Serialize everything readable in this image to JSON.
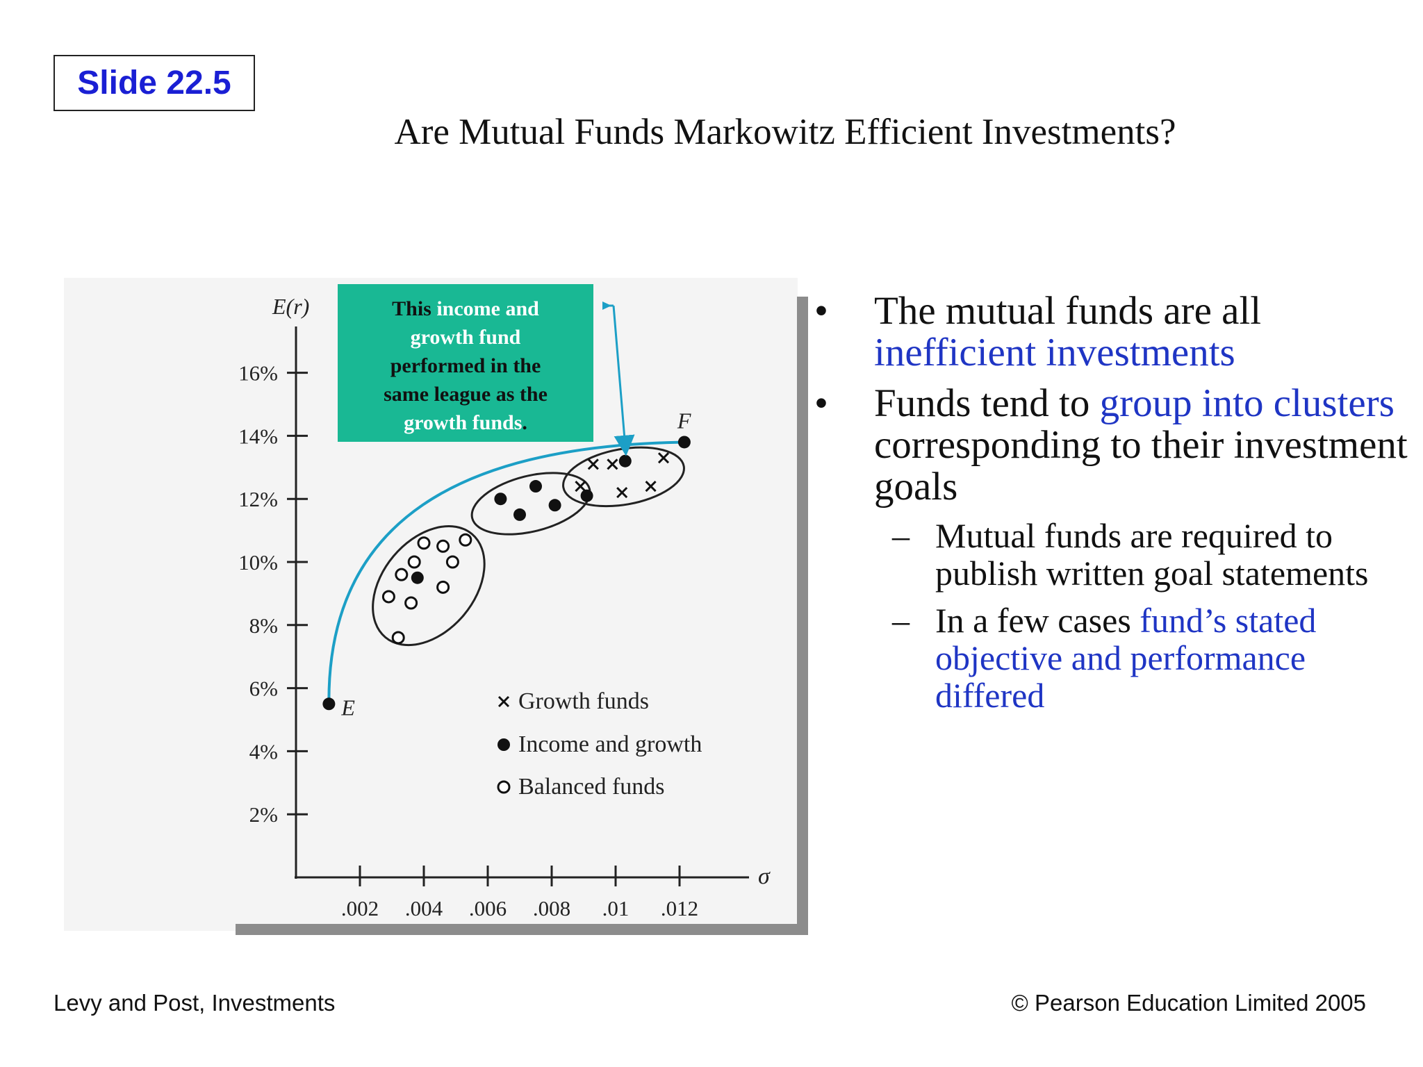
{
  "slide": {
    "label": "Slide 22.5",
    "title": "Are Mutual Funds Markowitz Efficient Investments?"
  },
  "bullets": {
    "b1": {
      "marker": "•",
      "text1": "The mutual funds are all",
      "hl": "inefficient investments"
    },
    "b2": {
      "marker": "•",
      "text1": "Funds tend to ",
      "hl": "group into clusters",
      "text2": " corresponding to their investment goals"
    },
    "s1": {
      "marker": "–",
      "text": "Mutual funds are required to publish written goal statements"
    },
    "s2": {
      "marker": "–",
      "text1": "In a few cases ",
      "hl": "fund’s stated objective and performance differed"
    }
  },
  "footer": {
    "left": "Levy and Post, Investments",
    "right": "© Pearson Education Limited 2005"
  },
  "colors": {
    "accent_blue": "#1f35c4",
    "frontier": "#1c9fc6",
    "callout_bg": "#19b894",
    "callout_text_white": "#ffffff",
    "callout_text_dark": "#111111",
    "shadow": "#8c8c8c"
  },
  "chart_data": {
    "type": "scatter",
    "ylabel": "E(r)",
    "xlabel": "σ",
    "x_ticks": [
      ".002",
      ".004",
      ".006",
      ".008",
      ".01",
      ".012"
    ],
    "x_tick_values": [
      0.002,
      0.004,
      0.006,
      0.008,
      0.01,
      0.012
    ],
    "y_ticks": [
      "2%",
      "4%",
      "6%",
      "8%",
      "10%",
      "12%",
      "14%",
      "16%"
    ],
    "y_tick_values": [
      2,
      4,
      6,
      8,
      10,
      12,
      14,
      16
    ],
    "xlim": [
      0,
      0.0141
    ],
    "ylim": [
      0,
      17.9
    ],
    "frontier": {
      "start_label": "E",
      "end_label": "F",
      "start": {
        "x": 0.00103,
        "y": 5.5
      },
      "end": {
        "x": 0.01215,
        "y": 13.8
      }
    },
    "series": [
      {
        "name": "Growth funds",
        "marker": "x",
        "points": [
          {
            "x": 0.0089,
            "y": 12.4
          },
          {
            "x": 0.0093,
            "y": 13.1
          },
          {
            "x": 0.0099,
            "y": 13.1
          },
          {
            "x": 0.0102,
            "y": 12.2
          },
          {
            "x": 0.0111,
            "y": 12.4
          },
          {
            "x": 0.0115,
            "y": 13.3
          }
        ]
      },
      {
        "name": "Income and growth",
        "marker": "filled-circle",
        "points": [
          {
            "x": 0.0064,
            "y": 12.0
          },
          {
            "x": 0.007,
            "y": 11.5
          },
          {
            "x": 0.0075,
            "y": 12.4
          },
          {
            "x": 0.0081,
            "y": 11.8
          },
          {
            "x": 0.0091,
            "y": 12.1
          },
          {
            "x": 0.0103,
            "y": 13.2
          },
          {
            "x": 0.0038,
            "y": 9.5
          }
        ]
      },
      {
        "name": "Balanced funds",
        "marker": "open-circle",
        "points": [
          {
            "x": 0.0029,
            "y": 8.9
          },
          {
            "x": 0.0032,
            "y": 7.6
          },
          {
            "x": 0.0033,
            "y": 9.6
          },
          {
            "x": 0.0036,
            "y": 8.7
          },
          {
            "x": 0.0037,
            "y": 10.0
          },
          {
            "x": 0.004,
            "y": 10.6
          },
          {
            "x": 0.0046,
            "y": 10.5
          },
          {
            "x": 0.0046,
            "y": 9.2
          },
          {
            "x": 0.0049,
            "y": 10.0
          },
          {
            "x": 0.0053,
            "y": 10.7
          }
        ]
      }
    ],
    "clusters": [
      {
        "name": "balanced-cluster",
        "cx": 0.00415,
        "cy": 9.25
      },
      {
        "name": "income-growth-cluster",
        "cx": 0.00735,
        "cy": 11.85
      },
      {
        "name": "growth-cluster",
        "cx": 0.01025,
        "cy": 12.7
      }
    ],
    "annotation": {
      "lines": [
        [
          {
            "t": "This ",
            "c": "dark"
          },
          {
            "t": "income and",
            "c": "white"
          }
        ],
        [
          {
            "t": "growth fund",
            "c": "white"
          }
        ],
        [
          {
            "t": "performed in the",
            "c": "dark"
          }
        ],
        [
          {
            "t": "same league as the",
            "c": "dark"
          }
        ],
        [
          {
            "t": "growth funds",
            "c": "white"
          },
          {
            "t": ".",
            "c": "dark"
          }
        ]
      ],
      "target": {
        "x": 0.0103,
        "y": 13.2
      }
    }
  }
}
